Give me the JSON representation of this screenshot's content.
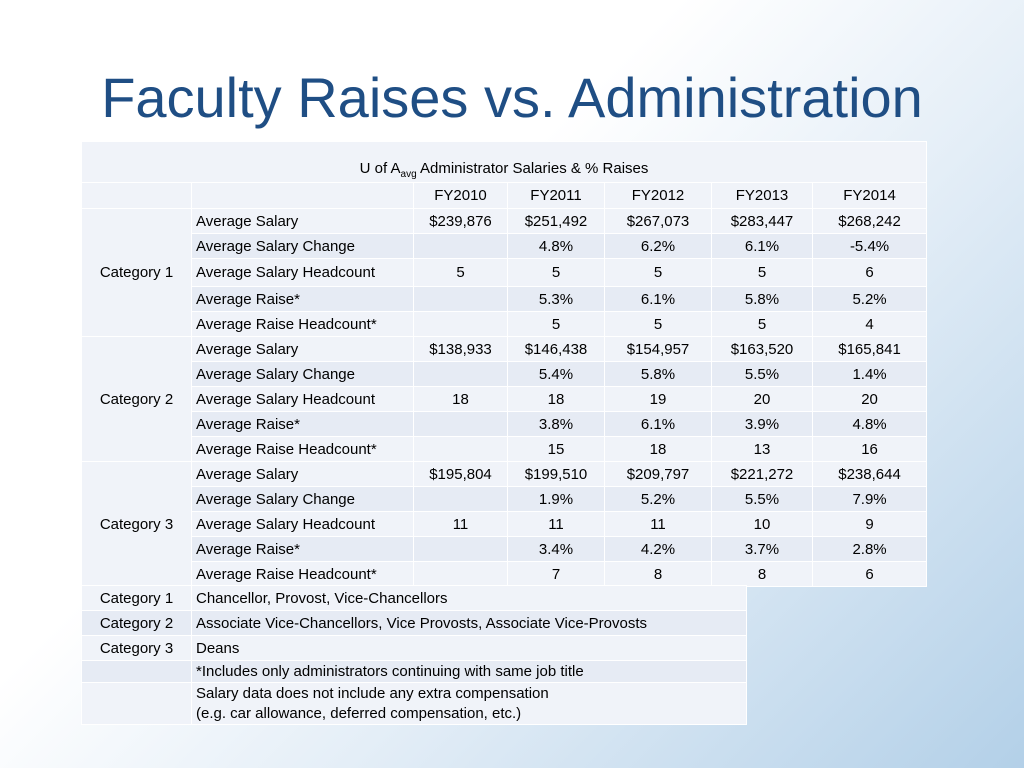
{
  "title": "Faculty Raises vs. Administration",
  "table": {
    "caption_prefix": "U of A",
    "caption_sub": "avg",
    "caption_suffix": " Administrator Salaries & % Raises",
    "years": [
      "FY2010",
      "FY2011",
      "FY2012",
      "FY2013",
      "FY2014"
    ],
    "categories": [
      {
        "name": "Category 1",
        "rows": [
          {
            "label": "Average Salary",
            "values": [
              "$239,876",
              "$251,492",
              "$267,073",
              "$283,447",
              "$268,242"
            ]
          },
          {
            "label": "Average Salary Change",
            "values": [
              "",
              "4.8%",
              "6.2%",
              "6.1%",
              "-5.4%"
            ]
          },
          {
            "label": "Average Salary Headcount",
            "values": [
              "5",
              "5",
              "5",
              "5",
              "6"
            ]
          },
          {
            "label": "Average Raise*",
            "values": [
              "",
              "5.3%",
              "6.1%",
              "5.8%",
              "5.2%"
            ]
          },
          {
            "label": "Average Raise Headcount*",
            "values": [
              "",
              "5",
              "5",
              "5",
              "4"
            ]
          }
        ]
      },
      {
        "name": "Category 2",
        "rows": [
          {
            "label": "Average Salary",
            "values": [
              "$138,933",
              "$146,438",
              "$154,957",
              "$163,520",
              "$165,841"
            ]
          },
          {
            "label": "Average Salary Change",
            "values": [
              "",
              "5.4%",
              "5.8%",
              "5.5%",
              "1.4%"
            ]
          },
          {
            "label": "Average Salary Headcount",
            "values": [
              "18",
              "18",
              "19",
              "20",
              "20"
            ]
          },
          {
            "label": "Average Raise*",
            "values": [
              "",
              "3.8%",
              "6.1%",
              "3.9%",
              "4.8%"
            ]
          },
          {
            "label": "Average Raise Headcount*",
            "values": [
              "",
              "15",
              "18",
              "13",
              "16"
            ]
          }
        ]
      },
      {
        "name": "Category 3",
        "rows": [
          {
            "label": "Average Salary",
            "values": [
              "$195,804",
              "$199,510",
              "$209,797",
              "$221,272",
              "$238,644"
            ]
          },
          {
            "label": "Average Salary Change",
            "values": [
              "",
              "1.9%",
              "5.2%",
              "5.5%",
              "7.9%"
            ]
          },
          {
            "label": "Average Salary Headcount",
            "values": [
              "11",
              "11",
              "11",
              "10",
              "9"
            ]
          },
          {
            "label": "Average Raise*",
            "values": [
              "",
              "3.4%",
              "4.2%",
              "3.7%",
              "2.8%"
            ]
          },
          {
            "label": "Average Raise Headcount*",
            "values": [
              "",
              "7",
              "8",
              "8",
              "6"
            ]
          }
        ]
      }
    ]
  },
  "legend": {
    "rows": [
      {
        "label": "Category 1",
        "text": "Chancellor, Provost, Vice-Chancellors"
      },
      {
        "label": "Category 2",
        "text": "Associate Vice-Chancellors, Vice Provosts, Associate Vice-Provosts"
      },
      {
        "label": "Category 3",
        "text": "Deans"
      },
      {
        "label": "",
        "text": "*Includes only administrators continuing  with same job title"
      }
    ],
    "note_line1": "Salary data does not include any extra compensation",
    "note_line2": "(e.g. car allowance, deferred compensation, etc.)"
  }
}
